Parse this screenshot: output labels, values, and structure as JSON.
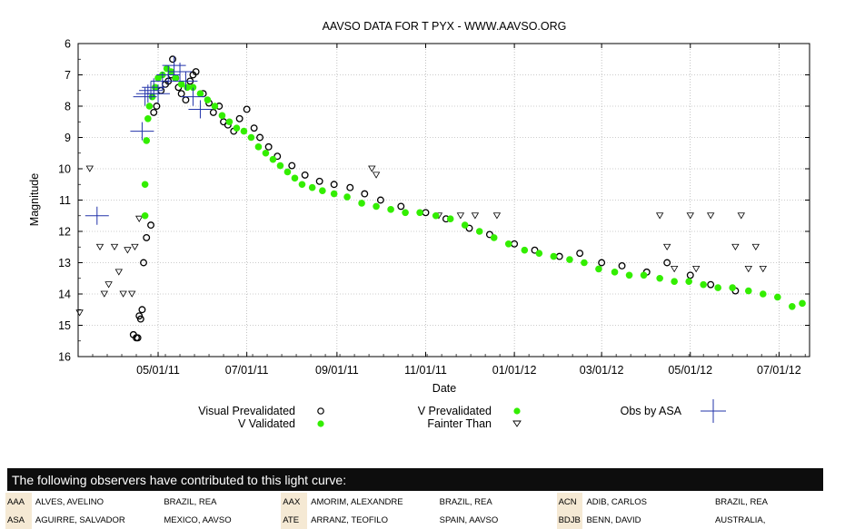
{
  "chart_data": {
    "type": "scatter",
    "title": "AAVSO DATA FOR T PYX - WWW.AAVSO.ORG",
    "xlabel": "Date",
    "ylabel": "Magnitude",
    "ylim": [
      16,
      6
    ],
    "y_inverted": true,
    "xlim": [
      "2011-03-07",
      "2012-07-22"
    ],
    "x_ticks": [
      "05/01/11",
      "07/01/11",
      "09/01/11",
      "11/01/11",
      "01/01/12",
      "03/01/12",
      "05/01/12",
      "07/01/12"
    ],
    "y_ticks": [
      6,
      7,
      8,
      9,
      10,
      11,
      12,
      13,
      14,
      15,
      16
    ],
    "grid": true,
    "legend": {
      "placement": "bottom",
      "entries": [
        "Visual Prevalidated",
        "V Validated",
        "V Prevalidated",
        "Fainter Than",
        "Obs by ASA"
      ]
    },
    "series": [
      {
        "name": "Visual Prevalidated",
        "marker": "open-circle",
        "color": "#000000",
        "x": [
          "2011-04-14",
          "2011-04-16",
          "2011-04-17",
          "2011-04-18",
          "2011-04-19",
          "2011-04-20",
          "2011-04-21",
          "2011-04-23",
          "2011-04-26",
          "2011-04-28",
          "2011-04-30",
          "2011-05-03",
          "2011-05-06",
          "2011-05-08",
          "2011-05-10",
          "2011-05-11",
          "2011-05-13",
          "2011-05-15",
          "2011-05-17",
          "2011-05-20",
          "2011-05-23",
          "2011-05-25",
          "2011-05-27",
          "2011-06-01",
          "2011-06-05",
          "2011-06-08",
          "2011-06-12",
          "2011-06-15",
          "2011-06-18",
          "2011-06-22",
          "2011-06-26",
          "2011-07-01",
          "2011-07-06",
          "2011-07-10",
          "2011-07-16",
          "2011-07-22",
          "2011-08-01",
          "2011-08-10",
          "2011-08-20",
          "2011-08-30",
          "2011-09-10",
          "2011-09-20",
          "2011-10-01",
          "2011-10-15",
          "2011-11-01",
          "2011-11-15",
          "2011-12-01",
          "2011-12-15",
          "2012-01-01",
          "2012-01-15",
          "2012-02-01",
          "2012-02-15",
          "2012-03-01",
          "2012-03-15",
          "2012-04-01",
          "2012-04-15",
          "2012-05-01",
          "2012-05-15",
          "2012-06-01"
        ],
        "y": [
          15.3,
          15.4,
          15.4,
          14.7,
          14.8,
          14.5,
          13.0,
          12.2,
          11.8,
          8.2,
          8.0,
          7.5,
          7.3,
          7.2,
          7.0,
          6.5,
          7.1,
          7.4,
          7.6,
          7.8,
          7.2,
          7.0,
          6.9,
          7.6,
          7.9,
          8.2,
          8.0,
          8.5,
          8.6,
          8.8,
          8.4,
          8.1,
          8.7,
          9.0,
          9.3,
          9.6,
          9.9,
          10.2,
          10.4,
          10.5,
          10.6,
          10.8,
          11.0,
          11.2,
          11.4,
          11.6,
          11.9,
          12.1,
          12.4,
          12.6,
          12.8,
          12.7,
          13.0,
          13.1,
          13.3,
          13.0,
          13.4,
          13.7,
          13.9
        ]
      },
      {
        "name": "V Validated",
        "marker": "filled-circle",
        "color": "#33ee00",
        "x": [],
        "y": []
      },
      {
        "name": "V Prevalidated",
        "marker": "filled-circle",
        "color": "#33ee00",
        "x": [
          "2011-04-22",
          "2011-04-22",
          "2011-04-23",
          "2011-04-24",
          "2011-04-25",
          "2011-04-27",
          "2011-04-29",
          "2011-05-01",
          "2011-05-04",
          "2011-05-07",
          "2011-05-10",
          "2011-05-13",
          "2011-05-17",
          "2011-05-21",
          "2011-05-25",
          "2011-05-30",
          "2011-06-04",
          "2011-06-09",
          "2011-06-14",
          "2011-06-19",
          "2011-06-24",
          "2011-06-29",
          "2011-07-04",
          "2011-07-09",
          "2011-07-14",
          "2011-07-19",
          "2011-07-24",
          "2011-07-29",
          "2011-08-03",
          "2011-08-08",
          "2011-08-15",
          "2011-08-22",
          "2011-08-30",
          "2011-09-08",
          "2011-09-18",
          "2011-09-28",
          "2011-10-08",
          "2011-10-18",
          "2011-10-28",
          "2011-11-08",
          "2011-11-18",
          "2011-11-28",
          "2011-12-08",
          "2011-12-18",
          "2011-12-28",
          "2012-01-08",
          "2012-01-18",
          "2012-01-28",
          "2012-02-08",
          "2012-02-18",
          "2012-02-28",
          "2012-03-10",
          "2012-03-20",
          "2012-03-30",
          "2012-04-10",
          "2012-04-20",
          "2012-04-30",
          "2012-05-10",
          "2012-05-20",
          "2012-05-30",
          "2012-06-10",
          "2012-06-20",
          "2012-06-30",
          "2012-07-10",
          "2012-07-17"
        ],
        "y": [
          11.5,
          10.5,
          9.1,
          8.4,
          8.0,
          7.7,
          7.4,
          7.1,
          7.0,
          6.8,
          6.9,
          7.1,
          7.3,
          7.4,
          7.4,
          7.6,
          7.8,
          8.0,
          8.3,
          8.5,
          8.7,
          8.8,
          9.0,
          9.3,
          9.5,
          9.7,
          9.9,
          10.1,
          10.3,
          10.5,
          10.6,
          10.7,
          10.8,
          10.9,
          11.1,
          11.2,
          11.3,
          11.4,
          11.4,
          11.5,
          11.6,
          11.8,
          12.0,
          12.2,
          12.4,
          12.6,
          12.7,
          12.8,
          12.9,
          13.0,
          13.2,
          13.3,
          13.4,
          13.4,
          13.5,
          13.6,
          13.6,
          13.7,
          13.8,
          13.8,
          13.9,
          14.0,
          14.1,
          14.4,
          14.3
        ]
      },
      {
        "name": "Fainter Than",
        "marker": "open-triangle-down",
        "color": "#000000",
        "x": [
          "2011-03-08",
          "2011-03-15",
          "2011-03-22",
          "2011-03-25",
          "2011-03-28",
          "2011-04-01",
          "2011-04-04",
          "2011-04-07",
          "2011-04-10",
          "2011-04-13",
          "2011-04-15",
          "2011-04-18",
          "2011-09-25",
          "2011-09-28",
          "2011-11-10",
          "2011-11-25",
          "2011-12-05",
          "2011-12-20",
          "2012-04-10",
          "2012-04-15",
          "2012-04-20",
          "2012-05-01",
          "2012-05-05",
          "2012-05-15",
          "2012-06-01",
          "2012-06-05",
          "2012-06-10",
          "2012-06-15",
          "2012-06-20"
        ],
        "y": [
          14.6,
          10.0,
          12.5,
          14.0,
          13.7,
          12.5,
          13.3,
          14.0,
          12.6,
          14.0,
          12.5,
          11.6,
          10.0,
          10.2,
          11.5,
          11.5,
          11.5,
          11.5,
          11.5,
          12.5,
          13.2,
          11.5,
          13.2,
          11.5,
          12.5,
          11.5,
          13.2,
          12.5,
          13.2
        ]
      },
      {
        "name": "Obs by ASA",
        "marker": "plus",
        "color": "#2233aa",
        "x": [
          "2011-03-20",
          "2011-04-20",
          "2011-04-22",
          "2011-04-24",
          "2011-04-26",
          "2011-04-28",
          "2011-05-01",
          "2011-05-04",
          "2011-05-08",
          "2011-05-12",
          "2011-05-16",
          "2011-05-20",
          "2011-05-25",
          "2011-05-30"
        ],
        "y": [
          11.5,
          8.8,
          7.7,
          7.6,
          7.5,
          7.4,
          7.6,
          7.2,
          7.0,
          6.7,
          6.9,
          7.2,
          7.7,
          8.1
        ]
      }
    ]
  },
  "observers_banner": "The following observers have contributed to this light curve:",
  "observers": [
    [
      {
        "code": "AAA",
        "name": "ALVES, AVELINO",
        "location": "BRAZIL, REA"
      },
      {
        "code": "AAX",
        "name": "AMORIM, ALEXANDRE",
        "location": "BRAZIL, REA"
      },
      {
        "code": "ACN",
        "name": "ADIB, CARLOS",
        "location": "BRAZIL, REA"
      }
    ],
    [
      {
        "code": "ASA",
        "name": "AGUIRRE, SALVADOR",
        "location": "MEXICO, AAVSO"
      },
      {
        "code": "ATE",
        "name": "ARRANZ, TEOFILO",
        "location": "SPAIN, AAVSO"
      },
      {
        "code": "BDJB",
        "name": "BENN, DAVID",
        "location": "AUSTRALIA,"
      }
    ]
  ]
}
